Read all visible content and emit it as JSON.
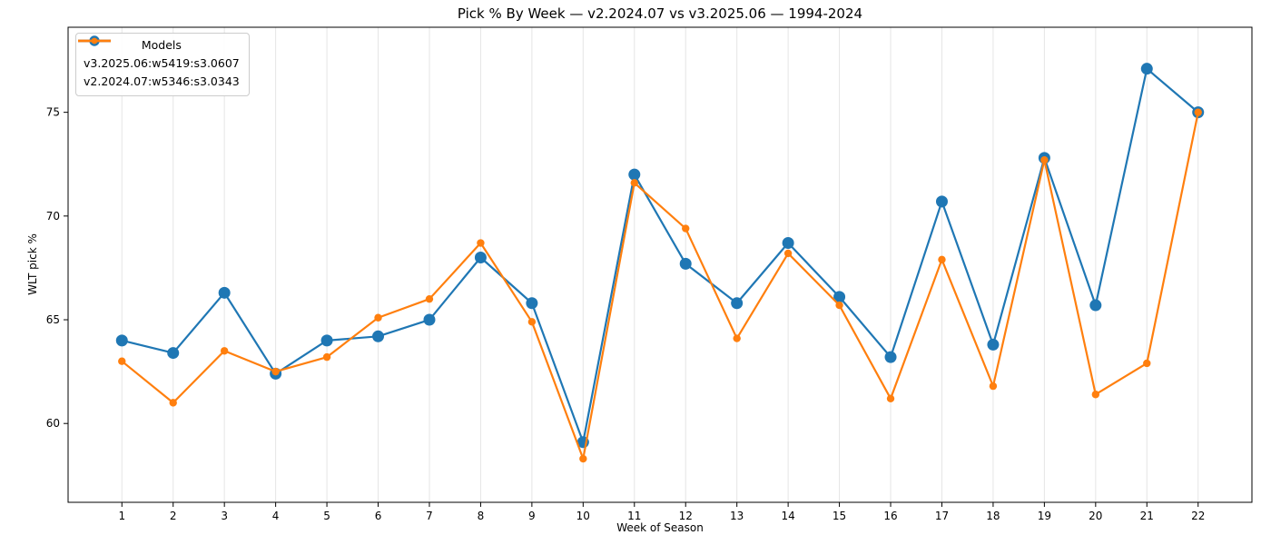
{
  "chart_data": {
    "type": "line",
    "title": "Pick % By Week — v2.2024.07 vs v3.2025.06 — 1994-2024",
    "xlabel": "Week of Season",
    "ylabel": "WLT pick %",
    "x": [
      1,
      2,
      3,
      4,
      5,
      6,
      7,
      8,
      9,
      10,
      11,
      12,
      13,
      14,
      15,
      16,
      17,
      18,
      19,
      20,
      21,
      22
    ],
    "series": [
      {
        "name": "v3.2025.06:w5419:s3.0607",
        "color": "#1f77b4",
        "marker_radius": 6.5,
        "line_width": 2.2,
        "values": [
          64.0,
          63.4,
          66.3,
          62.4,
          64.0,
          64.2,
          65.0,
          68.0,
          65.8,
          59.1,
          72.0,
          67.7,
          65.8,
          68.7,
          66.1,
          63.2,
          70.7,
          63.8,
          72.8,
          65.7,
          77.1,
          75.0
        ]
      },
      {
        "name": "v2.2024.07:w5346:s3.0343",
        "color": "#ff7f0e",
        "marker_radius": 4.2,
        "line_width": 2.2,
        "values": [
          63.0,
          61.0,
          63.5,
          62.5,
          63.2,
          65.1,
          66.0,
          68.7,
          64.9,
          58.3,
          71.6,
          69.4,
          64.1,
          68.2,
          65.7,
          61.2,
          67.9,
          61.8,
          72.7,
          61.4,
          62.9,
          75.0
        ]
      }
    ],
    "legend": {
      "title": "Models",
      "position": "upper left"
    },
    "yticks": [
      60,
      65,
      70,
      75
    ],
    "xlim": [
      -0.05,
      23.05
    ],
    "ylim": [
      56.2,
      79.1
    ],
    "grid": "vertical",
    "grid_color": "#e5e5e5",
    "spine_color": "#000000",
    "tick_color": "#000000",
    "background": "#ffffff"
  }
}
